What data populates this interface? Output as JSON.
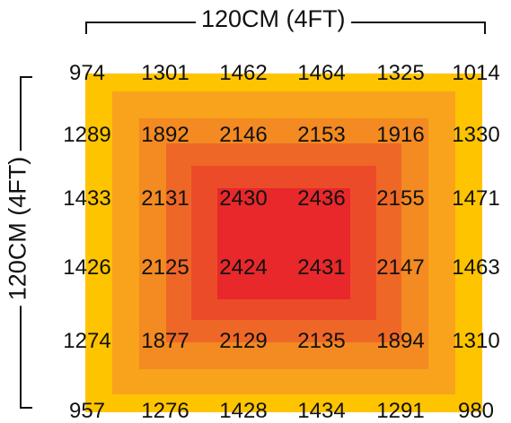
{
  "labels": {
    "width": "120CM (4FT)",
    "height": "120CM (4FT)"
  },
  "band_colors": [
    "#FFC400",
    "#F8A31B",
    "#F38A22",
    "#EF6727",
    "#EC4B2A",
    "#E8282A"
  ],
  "grid": [
    [
      974,
      1301,
      1462,
      1464,
      1325,
      1014
    ],
    [
      1289,
      1892,
      2146,
      2153,
      1916,
      1330
    ],
    [
      1433,
      2131,
      2430,
      2436,
      2155,
      1471
    ],
    [
      1426,
      2125,
      2424,
      2431,
      2147,
      1463
    ],
    [
      1274,
      1877,
      2129,
      2135,
      1894,
      1310
    ],
    [
      957,
      1276,
      1428,
      1434,
      1291,
      980
    ]
  ]
}
